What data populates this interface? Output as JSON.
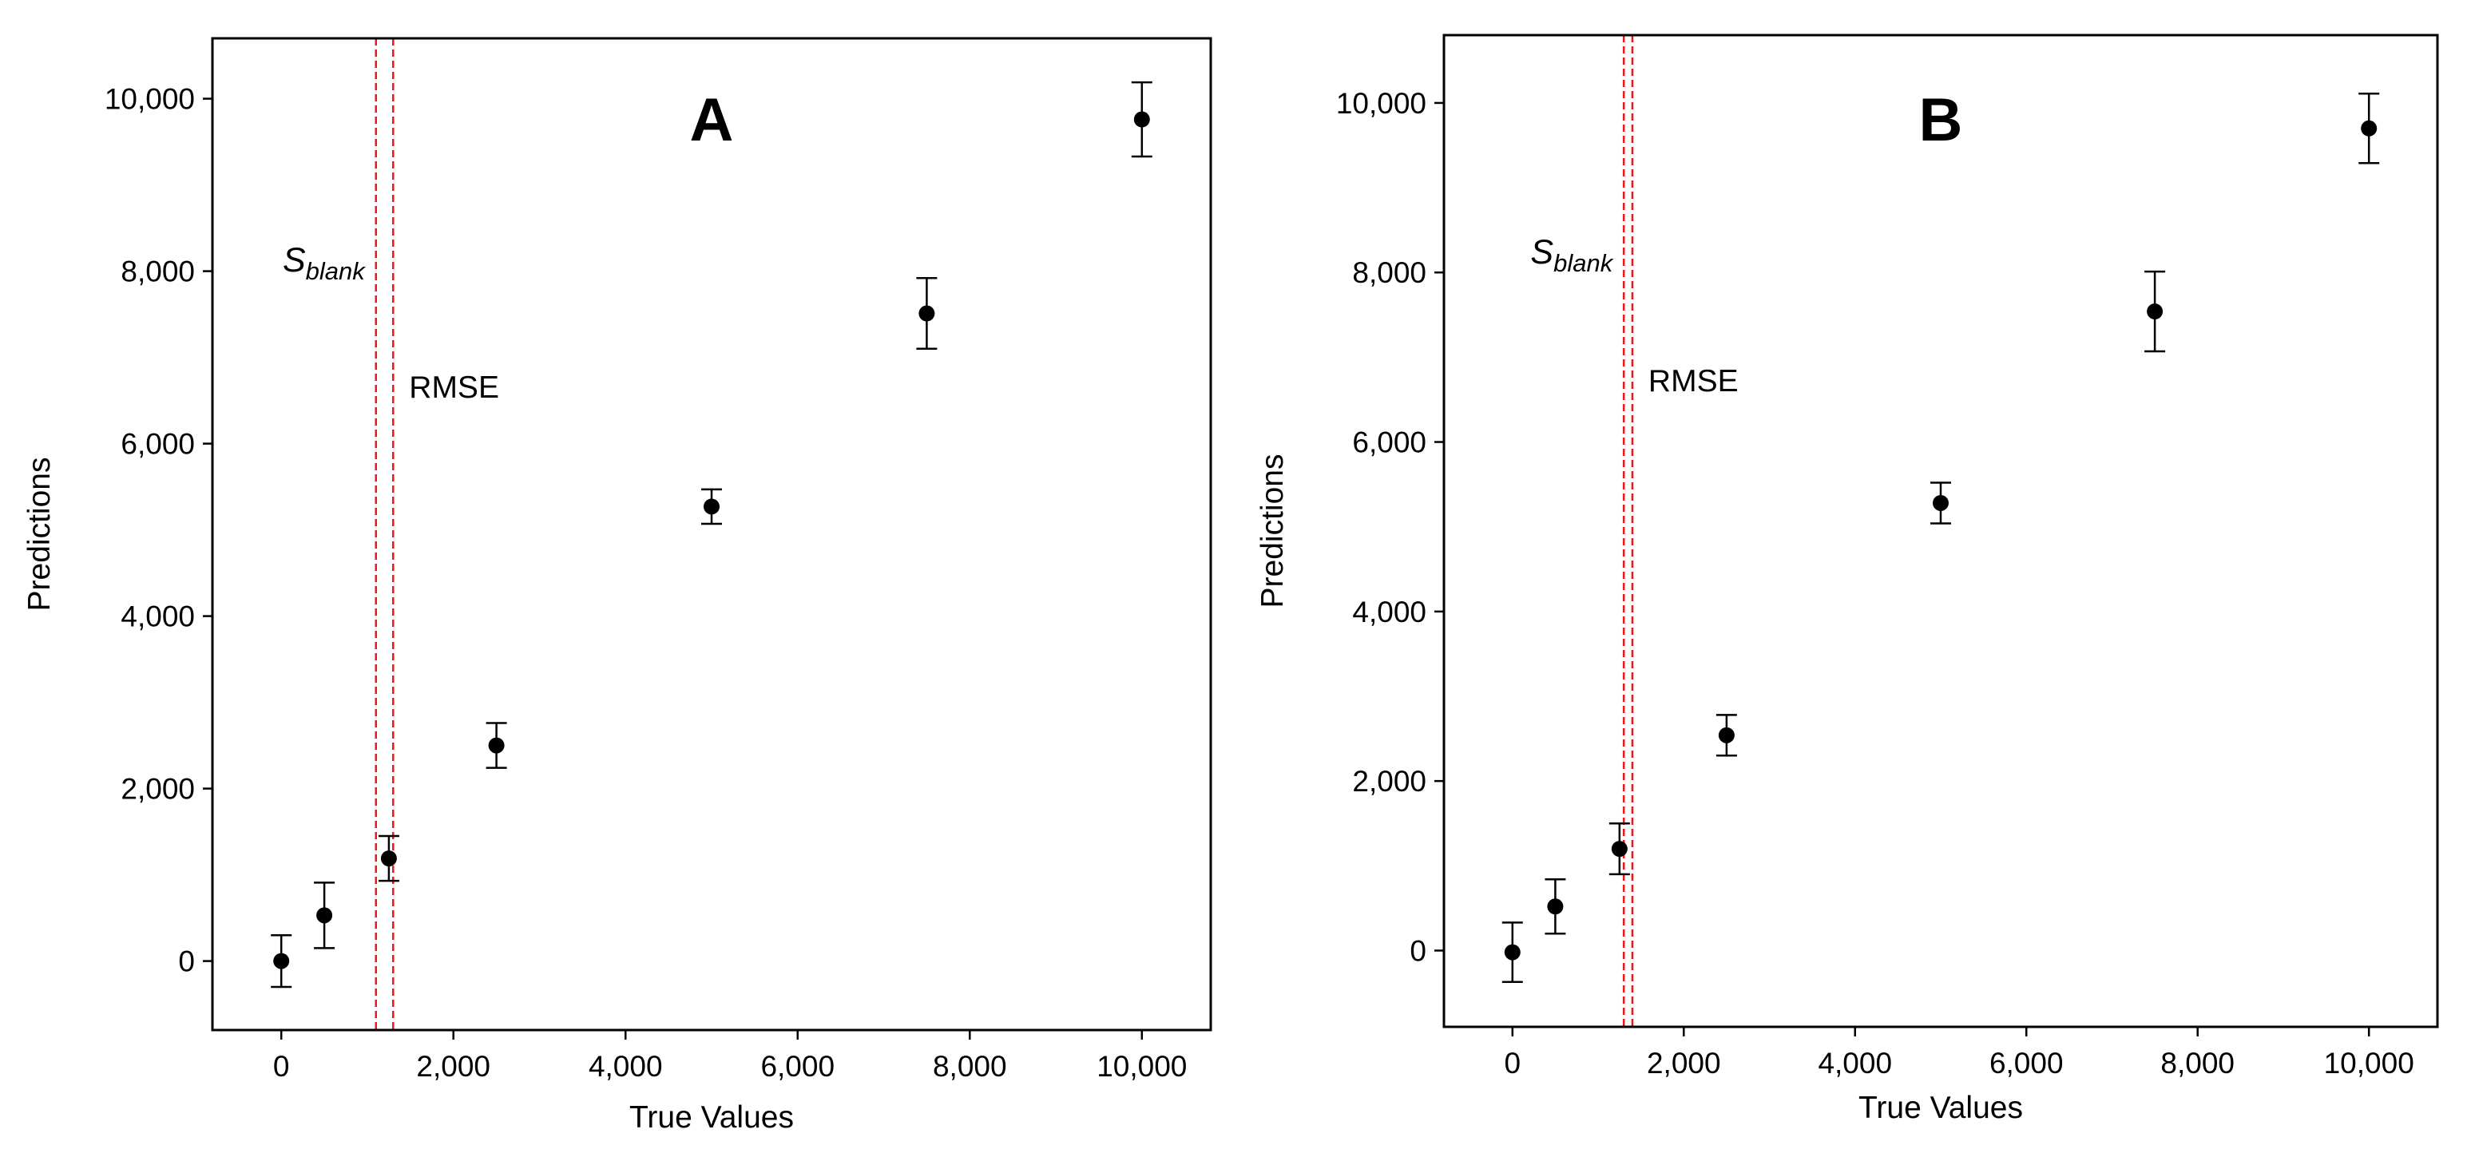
{
  "chart_data": [
    {
      "type": "scatter",
      "panel_label": "A",
      "xlabel": "True Values",
      "ylabel": "Predictions",
      "xlim": [
        -800,
        10800
      ],
      "ylim": [
        -800,
        10700
      ],
      "xticks": [
        0,
        2000,
        4000,
        6000,
        8000,
        10000
      ],
      "xtick_labels": [
        "0",
        "2,000",
        "4,000",
        "6,000",
        "8,000",
        "10,000"
      ],
      "yticks": [
        0,
        2000,
        4000,
        6000,
        8000,
        10000
      ],
      "ytick_labels": [
        "0",
        "2,000",
        "4,000",
        "6,000",
        "8,000",
        "10,000"
      ],
      "grid": false,
      "points": [
        {
          "x": 0,
          "y": 0,
          "err": 300
        },
        {
          "x": 500,
          "y": 530,
          "err": 380
        },
        {
          "x": 1250,
          "y": 1190,
          "err": 260
        },
        {
          "x": 2500,
          "y": 2500,
          "err": 260
        },
        {
          "x": 5000,
          "y": 5270,
          "err": 200
        },
        {
          "x": 7500,
          "y": 7510,
          "err": 410
        },
        {
          "x": 10000,
          "y": 9760,
          "err": 430
        }
      ],
      "vlines": [
        {
          "x": 1100,
          "label": "S",
          "subscript": "blank",
          "color": "#e8181c",
          "style": "dashed"
        },
        {
          "x": 1300,
          "label": "RMSE",
          "color": "#e8181c",
          "style": "dashed"
        }
      ]
    },
    {
      "type": "scatter",
      "panel_label": "B",
      "xlabel": "True Values",
      "ylabel": "Predictions",
      "xlim": [
        -800,
        10800
      ],
      "ylim": [
        -900,
        10800
      ],
      "xticks": [
        0,
        2000,
        4000,
        6000,
        8000,
        10000
      ],
      "xtick_labels": [
        "0",
        "2,000",
        "4,000",
        "6,000",
        "8,000",
        "10,000"
      ],
      "yticks": [
        0,
        2000,
        4000,
        6000,
        8000,
        10000
      ],
      "ytick_labels": [
        "0",
        "2,000",
        "4,000",
        "6,000",
        "8,000",
        "10,000"
      ],
      "grid": false,
      "points": [
        {
          "x": 0,
          "y": -20,
          "err": 350
        },
        {
          "x": 500,
          "y": 520,
          "err": 320
        },
        {
          "x": 1250,
          "y": 1200,
          "err": 300
        },
        {
          "x": 2500,
          "y": 2540,
          "err": 240
        },
        {
          "x": 5000,
          "y": 5280,
          "err": 240
        },
        {
          "x": 7500,
          "y": 7540,
          "err": 470
        },
        {
          "x": 10000,
          "y": 9700,
          "err": 410
        }
      ],
      "vlines": [
        {
          "x": 1300,
          "label": "S",
          "subscript": "blank",
          "color": "#e8181c",
          "style": "dashed"
        },
        {
          "x": 1400,
          "label": "RMSE",
          "color": "#e8181c",
          "style": "dashed"
        }
      ]
    }
  ]
}
